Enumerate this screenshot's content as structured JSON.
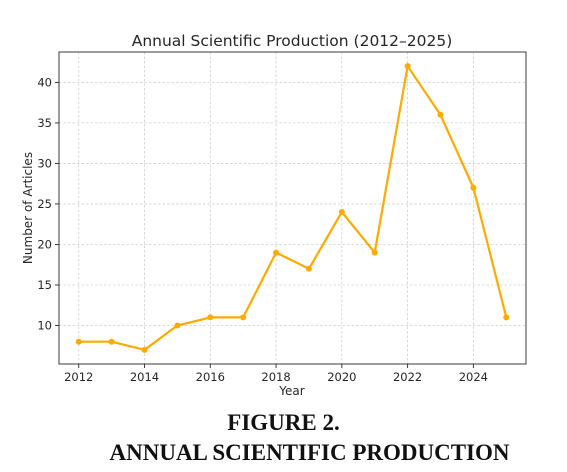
{
  "chart_data": {
    "type": "line",
    "title": "Annual Scientific Production (2012–2025)",
    "xlabel": "Year",
    "ylabel": "Number of Articles",
    "x": [
      2012,
      2013,
      2014,
      2015,
      2016,
      2017,
      2018,
      2019,
      2020,
      2021,
      2022,
      2023,
      2024,
      2025
    ],
    "series": [
      {
        "values": [
          8,
          8,
          7,
          10,
          11,
          11,
          19,
          17,
          24,
          19,
          42,
          36,
          27,
          11
        ]
      }
    ],
    "xticks": [
      2012,
      2014,
      2016,
      2018,
      2020,
      2022,
      2024
    ],
    "yticks": [
      10,
      15,
      20,
      25,
      30,
      35,
      40
    ],
    "xlim": [
      2011.4,
      2025.6
    ],
    "ylim": [
      5.25,
      43.75
    ],
    "grid": true,
    "line_color": "#FFAA00"
  },
  "caption": {
    "number": "FIGURE 2.",
    "title": "ANNUAL SCIENTIFIC PRODUCTION"
  }
}
